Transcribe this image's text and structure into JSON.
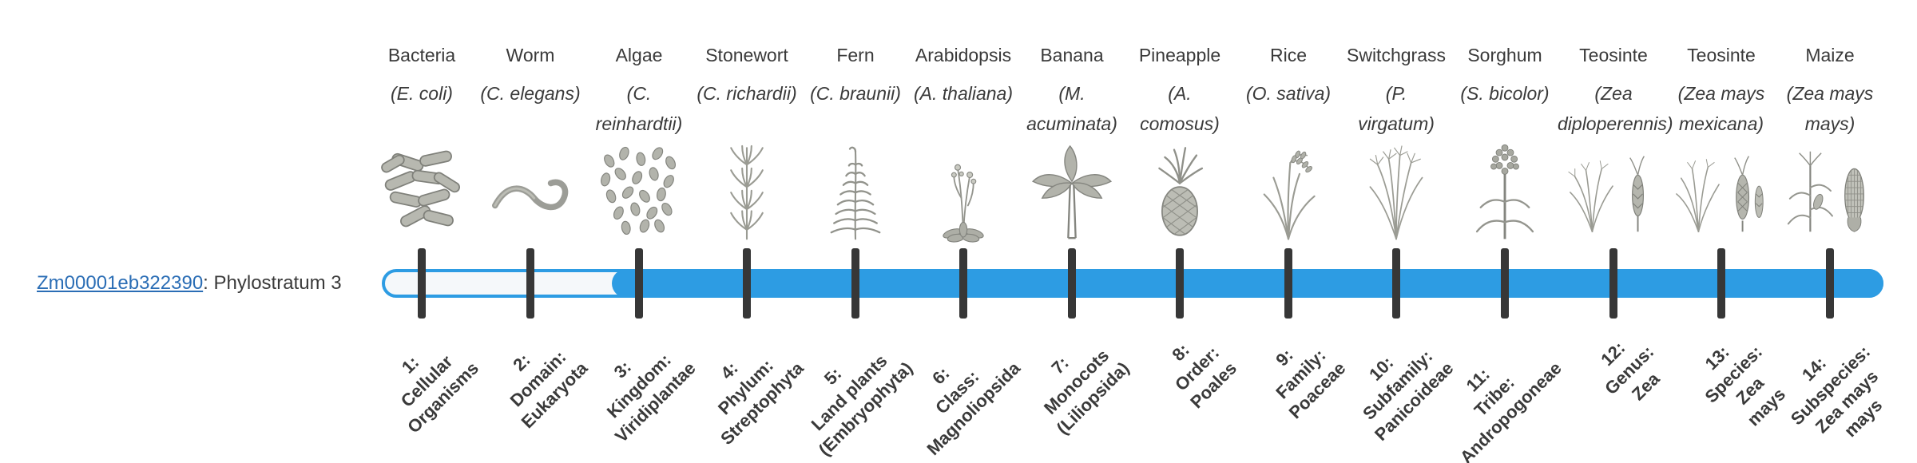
{
  "gene": {
    "id": "Zm00001eb322390",
    "suffix": ": Phylostratum 3",
    "link_color": "#2a6db5"
  },
  "timeline": {
    "bar_color": "#2d9ce3",
    "unfilled_color": "#f5f8fa",
    "tick_color": "#373737",
    "filled_from_stratum": 3,
    "total_strata": 14
  },
  "organisms": [
    {
      "name": "Bacteria",
      "sci_lines": [
        "(E. coli)"
      ],
      "icon": "bacteria-icon",
      "stratum_lines": [
        "1:",
        "Cellular",
        "Organisms"
      ]
    },
    {
      "name": "Worm",
      "sci_lines": [
        "(C. elegans)"
      ],
      "icon": "worm-icon",
      "stratum_lines": [
        "2:",
        "Domain:",
        "Eukaryota"
      ]
    },
    {
      "name": "Algae",
      "sci_lines": [
        "(C.",
        "reinhardtii)"
      ],
      "icon": "algae-icon",
      "stratum_lines": [
        "3:",
        "Kingdom:",
        "Viridiplantae"
      ]
    },
    {
      "name": "Stonewort",
      "sci_lines": [
        "(C. richardii)"
      ],
      "icon": "stonewort-icon",
      "stratum_lines": [
        "4:",
        "Phylum:",
        "Streptophyta"
      ]
    },
    {
      "name": "Fern",
      "sci_lines": [
        "(C. braunii)"
      ],
      "icon": "fern-icon",
      "stratum_lines": [
        "5:",
        "Land plants",
        "(Embryophyta)"
      ]
    },
    {
      "name": "Arabidopsis",
      "sci_lines": [
        "(A. thaliana)"
      ],
      "icon": "arabidopsis-icon",
      "stratum_lines": [
        "6:",
        "Class:",
        "Magnoliopsida"
      ]
    },
    {
      "name": "Banana",
      "sci_lines": [
        "(M.",
        "acuminata)"
      ],
      "icon": "banana-icon",
      "stratum_lines": [
        "7:",
        "Monocots",
        "(Liliopsida)"
      ]
    },
    {
      "name": "Pineapple",
      "sci_lines": [
        "(A.",
        "comosus)"
      ],
      "icon": "pineapple-icon",
      "stratum_lines": [
        "8:",
        "Order:",
        "Poales"
      ]
    },
    {
      "name": "Rice",
      "sci_lines": [
        "(O. sativa)"
      ],
      "icon": "rice-icon",
      "stratum_lines": [
        "9:",
        "Family:",
        "Poaceae"
      ]
    },
    {
      "name": "Switchgrass",
      "sci_lines": [
        "(P.",
        "virgatum)"
      ],
      "icon": "switchgrass-icon",
      "stratum_lines": [
        "10:",
        "Subfamily:",
        "Panicoideae"
      ]
    },
    {
      "name": "Sorghum",
      "sci_lines": [
        "(S. bicolor)"
      ],
      "icon": "sorghum-icon",
      "stratum_lines": [
        "11:",
        "Tribe:",
        "Andropogoneae"
      ]
    },
    {
      "name": "Teosinte",
      "sci_lines": [
        "(Zea",
        "diploperennis)"
      ],
      "icon": "teosinte-diploperennis-icon",
      "stratum_lines": [
        "12:",
        "Genus:",
        "Zea"
      ]
    },
    {
      "name": "Teosinte",
      "sci_lines": [
        "(Zea mays",
        "mexicana)"
      ],
      "icon": "teosinte-mexicana-icon",
      "stratum_lines": [
        "13:",
        "Species:",
        "Zea",
        "mays"
      ]
    },
    {
      "name": "Maize",
      "sci_lines": [
        "(Zea mays",
        "mays)"
      ],
      "icon": "maize-icon",
      "stratum_lines": [
        "14:",
        "Subspecies:",
        "Zea mays",
        "mays"
      ]
    }
  ]
}
